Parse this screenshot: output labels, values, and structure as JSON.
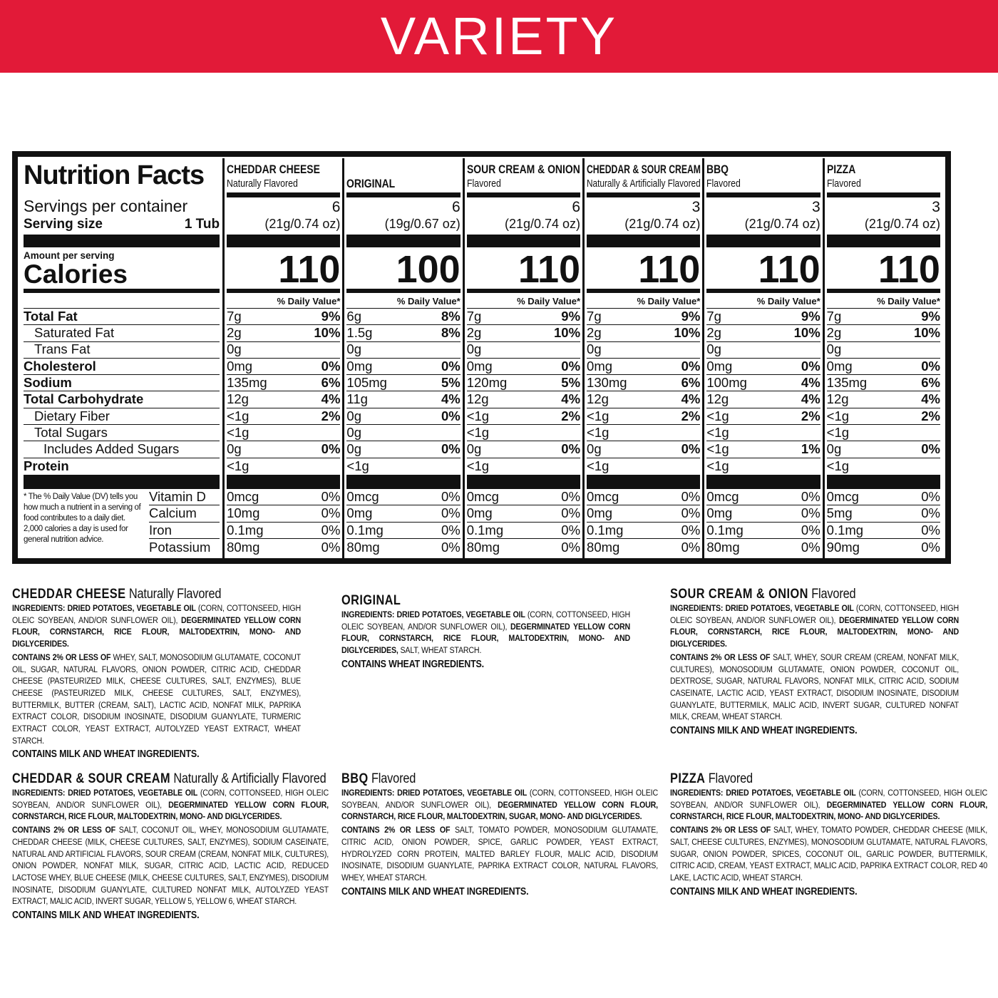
{
  "banner": {
    "title": "VARIETY",
    "color": "#e21a38"
  },
  "nutrition": {
    "title": "Nutrition Facts",
    "servings_label": "Servings per container",
    "serving_size_label": "Serving size",
    "serving_size_value": "1 Tub",
    "amount_per_serving": "Amount per serving",
    "calories_label": "Calories",
    "dv_header": "% Daily Value*",
    "nutrient_labels": [
      {
        "label": "Total Fat",
        "style": "bold"
      },
      {
        "label": "Saturated Fat",
        "style": "indent"
      },
      {
        "label": "Trans Fat",
        "style": "indent"
      },
      {
        "label": "Cholesterol",
        "style": "bold"
      },
      {
        "label": "Sodium",
        "style": "bold"
      },
      {
        "label": "Total Carbohydrate",
        "style": "bold"
      },
      {
        "label": "Dietary Fiber",
        "style": "indent"
      },
      {
        "label": "Total Sugars",
        "style": "indent"
      },
      {
        "label": "Includes Added Sugars",
        "style": "indent2"
      },
      {
        "label": "Protein",
        "style": "bold"
      }
    ],
    "vitamin_labels": [
      "Vitamin D",
      "Calcium",
      "Iron",
      "Potassium"
    ],
    "footnote": "* The % Daily Value (DV) tells you how much a nutrient in a serving of food contributes to a daily diet. 2,000 calories a day is used for general nutrition advice.",
    "flavors": [
      {
        "name": "CHEDDAR CHEESE",
        "sub": "Naturally Flavored",
        "servings": "6",
        "size": "(21g/0.74 oz)",
        "calories": "110",
        "nutrients": [
          [
            "7g",
            "9%"
          ],
          [
            "2g",
            "10%"
          ],
          [
            "0g",
            ""
          ],
          [
            "0mg",
            "0%"
          ],
          [
            "135mg",
            "6%"
          ],
          [
            "12g",
            "4%"
          ],
          [
            "<1g",
            "2%"
          ],
          [
            "<1g",
            ""
          ],
          [
            "0g",
            "0%"
          ],
          [
            "<1g",
            ""
          ]
        ],
        "vitamins": [
          [
            "0mcg",
            "0%"
          ],
          [
            "10mg",
            "0%"
          ],
          [
            "0.1mg",
            "0%"
          ],
          [
            "80mg",
            "0%"
          ]
        ]
      },
      {
        "name": "ORIGINAL",
        "sub": "",
        "servings": "6",
        "size": "(19g/0.67 oz)",
        "calories": "100",
        "nutrients": [
          [
            "6g",
            "8%"
          ],
          [
            "1.5g",
            "8%"
          ],
          [
            "0g",
            ""
          ],
          [
            "0mg",
            "0%"
          ],
          [
            "105mg",
            "5%"
          ],
          [
            "11g",
            "4%"
          ],
          [
            "0g",
            "0%"
          ],
          [
            "0g",
            ""
          ],
          [
            "0g",
            "0%"
          ],
          [
            "<1g",
            ""
          ]
        ],
        "vitamins": [
          [
            "0mcg",
            "0%"
          ],
          [
            "0mg",
            "0%"
          ],
          [
            "0.1mg",
            "0%"
          ],
          [
            "80mg",
            "0%"
          ]
        ]
      },
      {
        "name": "SOUR CREAM & ONION",
        "sub": "Flavored",
        "servings": "6",
        "size": "(21g/0.74 oz)",
        "calories": "110",
        "nutrients": [
          [
            "7g",
            "9%"
          ],
          [
            "2g",
            "10%"
          ],
          [
            "0g",
            ""
          ],
          [
            "0mg",
            "0%"
          ],
          [
            "120mg",
            "5%"
          ],
          [
            "12g",
            "4%"
          ],
          [
            "<1g",
            "2%"
          ],
          [
            "<1g",
            ""
          ],
          [
            "0g",
            "0%"
          ],
          [
            "<1g",
            ""
          ]
        ],
        "vitamins": [
          [
            "0mcg",
            "0%"
          ],
          [
            "0mg",
            "0%"
          ],
          [
            "0.1mg",
            "0%"
          ],
          [
            "80mg",
            "0%"
          ]
        ]
      },
      {
        "name": "CHEDDAR & SOUR CREAM",
        "sub": "Naturally & Artificially Flavored",
        "servings": "3",
        "size": "(21g/0.74 oz)",
        "calories": "110",
        "nutrients": [
          [
            "7g",
            "9%"
          ],
          [
            "2g",
            "10%"
          ],
          [
            "0g",
            ""
          ],
          [
            "0mg",
            "0%"
          ],
          [
            "130mg",
            "6%"
          ],
          [
            "12g",
            "4%"
          ],
          [
            "<1g",
            "2%"
          ],
          [
            "<1g",
            ""
          ],
          [
            "0g",
            "0%"
          ],
          [
            "<1g",
            ""
          ]
        ],
        "vitamins": [
          [
            "0mcg",
            "0%"
          ],
          [
            "0mg",
            "0%"
          ],
          [
            "0.1mg",
            "0%"
          ],
          [
            "80mg",
            "0%"
          ]
        ]
      },
      {
        "name": "BBQ",
        "sub": "Flavored",
        "servings": "3",
        "size": "(21g/0.74 oz)",
        "calories": "110",
        "nutrients": [
          [
            "7g",
            "9%"
          ],
          [
            "2g",
            "10%"
          ],
          [
            "0g",
            ""
          ],
          [
            "0mg",
            "0%"
          ],
          [
            "100mg",
            "4%"
          ],
          [
            "12g",
            "4%"
          ],
          [
            "<1g",
            "2%"
          ],
          [
            "<1g",
            ""
          ],
          [
            "<1g",
            "1%"
          ],
          [
            "<1g",
            ""
          ]
        ],
        "vitamins": [
          [
            "0mcg",
            "0%"
          ],
          [
            "0mg",
            "0%"
          ],
          [
            "0.1mg",
            "0%"
          ],
          [
            "80mg",
            "0%"
          ]
        ]
      },
      {
        "name": "PIZZA",
        "sub": "Flavored",
        "servings": "3",
        "size": "(21g/0.74 oz)",
        "calories": "110",
        "nutrients": [
          [
            "7g",
            "9%"
          ],
          [
            "2g",
            "10%"
          ],
          [
            "0g",
            ""
          ],
          [
            "0mg",
            "0%"
          ],
          [
            "135mg",
            "6%"
          ],
          [
            "12g",
            "4%"
          ],
          [
            "<1g",
            "2%"
          ],
          [
            "<1g",
            ""
          ],
          [
            "0g",
            "0%"
          ],
          [
            "<1g",
            ""
          ]
        ],
        "vitamins": [
          [
            "0mcg",
            "0%"
          ],
          [
            "5mg",
            "0%"
          ],
          [
            "0.1mg",
            "0%"
          ],
          [
            "90mg",
            "0%"
          ]
        ]
      }
    ]
  },
  "ingredients": [
    {
      "name": "CHEDDAR CHEESE",
      "sub": "Naturally Flavored",
      "main": [
        [
          "b",
          "INGREDIENTS: DRIED POTATOES, VEGETABLE OIL"
        ],
        [
          "n",
          " (CORN, COTTONSEED, HIGH OLEIC SOYBEAN, AND/OR SUNFLOWER OIL), "
        ],
        [
          "b",
          "DEGERMINATED YELLOW CORN FLOUR, CORNSTARCH, RICE FLOUR, MALTODEXTRIN, MONO- AND DIGLYCERIDES."
        ]
      ],
      "minor": [
        [
          "b",
          "CONTAINS 2% OR LESS OF"
        ],
        [
          "n",
          " WHEY, SALT, MONOSODIUM GLUTAMATE, COCONUT OIL, SUGAR, NATURAL FLAVORS, ONION POWDER, CITRIC ACID, CHEDDAR CHEESE (PASTEURIZED MILK, CHEESE CULTURES, SALT, ENZYMES), BLUE CHEESE (PASTEURIZED MILK, CHEESE CULTURES, SALT, ENZYMES), BUTTERMILK, BUTTER (CREAM, SALT), LACTIC ACID, NONFAT MILK, PAPRIKA EXTRACT COLOR, DISODIUM INOSINATE, DISODIUM GUANYLATE, TURMERIC EXTRACT COLOR, YEAST EXTRACT, AUTOLYZED YEAST EXTRACT, WHEAT STARCH."
        ]
      ],
      "allergen": "CONTAINS MILK AND WHEAT INGREDIENTS."
    },
    {
      "name": "ORIGINAL",
      "sub": "",
      "main": [
        [
          "b",
          "INGREDIENTS: DRIED POTATOES, VEGETABLE OIL"
        ],
        [
          "n",
          " (CORN, COTTONSEED, HIGH OLEIC SOYBEAN, AND/OR SUNFLOWER OIL), "
        ],
        [
          "b",
          "DEGERMINATED YELLOW CORN FLOUR, CORNSTARCH, RICE FLOUR, MALTODEXTRIN, MONO- AND DIGLYCERIDES,"
        ],
        [
          "n",
          " SALT, WHEAT STARCH."
        ]
      ],
      "minor": [],
      "allergen": "CONTAINS WHEAT INGREDIENTS."
    },
    {
      "name": "SOUR CREAM & ONION",
      "sub": "Flavored",
      "main": [
        [
          "b",
          "INGREDIENTS: DRIED POTATOES, VEGETABLE OIL"
        ],
        [
          "n",
          " (CORN, COTTONSEED, HIGH OLEIC SOYBEAN, AND/OR SUNFLOWER OIL), "
        ],
        [
          "b",
          "DEGERMINATED YELLOW CORN FLOUR, CORNSTARCH, RICE FLOUR, MALTODEXTRIN, MONO- AND DIGLYCERIDES."
        ]
      ],
      "minor": [
        [
          "b",
          "CONTAINS 2% OR LESS OF"
        ],
        [
          "n",
          " SALT, WHEY, SOUR CREAM (CREAM, NONFAT MILK, CULTURES), MONOSODIUM GLUTAMATE, ONION POWDER, COCONUT OIL, DEXTROSE, SUGAR, NATURAL FLAVORS, NONFAT MILK, CITRIC ACID, SODIUM CASEINATE, LACTIC ACID, YEAST EXTRACT, DISODIUM INOSINATE, DISODIUM GUANYLATE, BUTTERMILK, MALIC ACID, INVERT SUGAR, CULTURED NONFAT MILK, CREAM, WHEAT STARCH."
        ]
      ],
      "allergen": "CONTAINS MILK AND WHEAT INGREDIENTS."
    },
    {
      "name": "CHEDDAR & SOUR CREAM",
      "sub": "Naturally & Artificially Flavored",
      "main": [
        [
          "b",
          "INGREDIENTS: DRIED POTATOES, VEGETABLE OIL"
        ],
        [
          "n",
          " (CORN, COTTONSEED, HIGH OLEIC SOYBEAN, AND/OR SUNFLOWER OIL), "
        ],
        [
          "b",
          "DEGERMINATED YELLOW CORN FLOUR, CORNSTARCH, RICE FLOUR, MALTODEXTRIN, MONO- AND DIGLYCERIDES."
        ]
      ],
      "minor": [
        [
          "b",
          "CONTAINS 2% OR LESS OF"
        ],
        [
          "n",
          " SALT, COCONUT OIL, WHEY, MONOSODIUM GLUTAMATE, CHEDDAR CHEESE (MILK, CHEESE CULTURES, SALT, ENZYMES), SODIUM CASEINATE, NATURAL AND ARTIFICIAL FLAVORS, SOUR CREAM (CREAM, NONFAT MILK, CULTURES), ONION POWDER, NONFAT MILK, SUGAR, CITRIC ACID, LACTIC ACID, REDUCED LACTOSE WHEY, BLUE CHEESE (MILK, CHEESE CULTURES, SALT, ENZYMES), DISODIUM INOSINATE, DISODIUM GUANYLATE, CULTURED NONFAT MILK, AUTOLYZED YEAST EXTRACT, MALIC ACID, INVERT SUGAR, YELLOW 5, YELLOW 6, WHEAT STARCH."
        ]
      ],
      "allergen": "CONTAINS MILK AND WHEAT INGREDIENTS."
    },
    {
      "name": "BBQ",
      "sub": "Flavored",
      "main": [
        [
          "b",
          "INGREDIENTS: DRIED POTATOES, VEGETABLE OIL"
        ],
        [
          "n",
          " (CORN, COTTONSEED, HIGH OLEIC SOYBEAN, AND/OR SUNFLOWER OIL), "
        ],
        [
          "b",
          "DEGERMINATED YELLOW CORN FLOUR, CORNSTARCH, RICE FLOUR, MALTODEXTRIN, SUGAR, MONO- AND DIGLYCERIDES."
        ]
      ],
      "minor": [
        [
          "b",
          "CONTAINS 2% OR LESS OF"
        ],
        [
          "n",
          " SALT, TOMATO POWDER, MONOSODIUM GLUTAMATE, CITRIC ACID, ONION POWDER, SPICE, GARLIC POWDER, YEAST EXTRACT, HYDROLYZED CORN PROTEIN, MALTED BARLEY FLOUR, MALIC ACID, DISODIUM INOSINATE, DISODIUM GUANYLATE, PAPRIKA EXTRACT COLOR, NATURAL FLAVORS, WHEY, WHEAT STARCH."
        ]
      ],
      "allergen": "CONTAINS MILK AND WHEAT INGREDIENTS."
    },
    {
      "name": "PIZZA",
      "sub": "Flavored",
      "main": [
        [
          "b",
          "INGREDIENTS: DRIED POTATOES, VEGETABLE OIL"
        ],
        [
          "n",
          " (CORN, COTTONSEED, HIGH OLEIC SOYBEAN, AND/OR SUNFLOWER OIL), "
        ],
        [
          "b",
          "DEGERMINATED YELLOW CORN FLOUR, CORNSTARCH, RICE FLOUR, MALTODEXTRIN, MONO- AND DIGLYCERIDES."
        ]
      ],
      "minor": [
        [
          "b",
          "CONTAINS 2% OR LESS OF"
        ],
        [
          "n",
          " SALT, WHEY, TOMATO POWDER, CHEDDAR CHEESE (MILK, SALT, CHEESE CULTURES, ENZYMES), MONOSODIUM GLUTAMATE, NATURAL FLAVORS, SUGAR, ONION POWDER, SPICES, COCONUT OIL, GARLIC POWDER, BUTTERMILK, CITRIC ACID, CREAM, YEAST EXTRACT, MALIC ACID, PAPRIKA EXTRACT COLOR, RED 40 LAKE, LACTIC ACID, WHEAT STARCH."
        ]
      ],
      "allergen": "CONTAINS MILK AND WHEAT INGREDIENTS."
    }
  ]
}
